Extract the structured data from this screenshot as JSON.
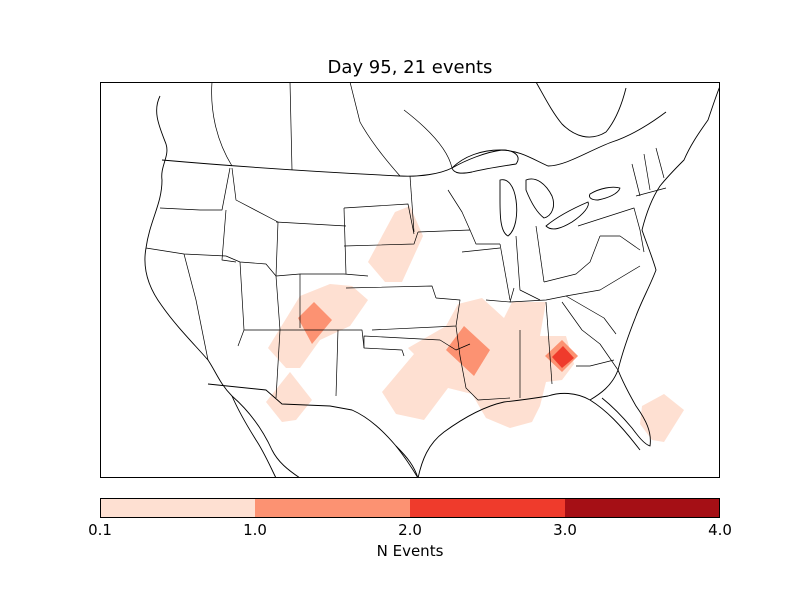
{
  "title": "Day 95, 21 events",
  "colorbar": {
    "label": "N Events",
    "ticks": [
      "0.1",
      "1.0",
      "2.0",
      "3.0",
      "4.0"
    ],
    "bins": [
      {
        "from": 0.1,
        "to": 1.0,
        "color": "#fee0d2"
      },
      {
        "from": 1.0,
        "to": 2.0,
        "color": "#fc9272"
      },
      {
        "from": 2.0,
        "to": 3.0,
        "color": "#ef3b2c"
      },
      {
        "from": 3.0,
        "to": 4.0,
        "color": "#a50f15"
      }
    ]
  },
  "map": {
    "region": "contiguous-united-states",
    "layers": [
      "coastlines",
      "country-borders",
      "state-borders"
    ],
    "event_density": "filled-contours"
  }
}
